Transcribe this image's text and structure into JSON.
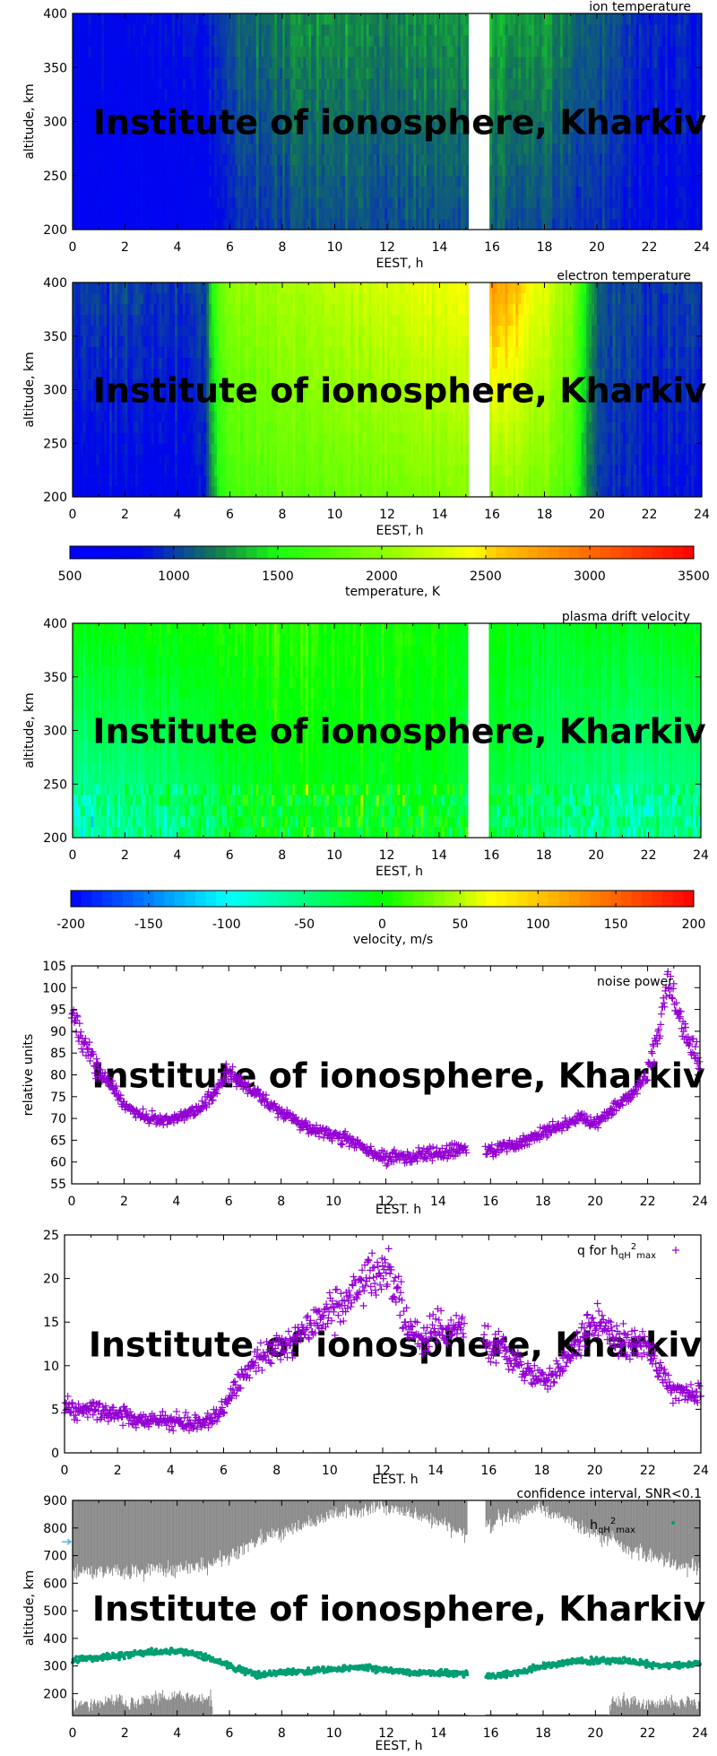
{
  "watermark": "Institute of ionosphere, Kharkiv",
  "chart_data": [
    {
      "type": "heatmap",
      "title": "ion temperature",
      "xlabel": "EEST, h",
      "ylabel": "altitude, km",
      "xlim": [
        0,
        24
      ],
      "ylim": [
        200,
        400
      ],
      "xticks": [
        0,
        2,
        4,
        6,
        8,
        10,
        12,
        14,
        16,
        18,
        20,
        22,
        24
      ],
      "yticks": [
        200,
        250,
        300,
        350,
        400
      ],
      "no_data_interval": [
        15.1,
        15.8
      ],
      "colorscale": "temperature",
      "profile": {
        "hours": [
          0,
          2,
          4,
          5,
          6,
          8,
          10,
          12,
          14,
          15,
          16,
          18,
          20,
          22,
          24
        ],
        "value_at_200km": [
          700,
          700,
          720,
          760,
          950,
          1050,
          1060,
          1050,
          1080,
          1060,
          1100,
          1050,
          950,
          850,
          820
        ],
        "value_at_400km": [
          850,
          850,
          870,
          900,
          1100,
          1250,
          1250,
          1230,
          1280,
          1250,
          1320,
          1280,
          1100,
          950,
          900
        ]
      }
    },
    {
      "type": "heatmap",
      "title": "electron temperature",
      "xlabel": "EEST, h",
      "ylabel": "altitude, km",
      "xlim": [
        0,
        24
      ],
      "ylim": [
        200,
        400
      ],
      "xticks": [
        0,
        2,
        4,
        6,
        8,
        10,
        12,
        14,
        16,
        18,
        20,
        22,
        24
      ],
      "yticks": [
        200,
        250,
        300,
        350,
        400
      ],
      "no_data_interval": [
        15.1,
        15.8
      ],
      "colorscale": "temperature",
      "profile": {
        "hours": [
          0,
          2,
          4,
          5,
          5.5,
          6,
          8,
          10,
          12,
          14,
          15,
          16,
          17,
          18,
          19,
          19.5,
          20,
          22,
          24
        ],
        "value_at_200km": [
          800,
          800,
          820,
          900,
          1500,
          1700,
          1800,
          1850,
          1900,
          1950,
          1950,
          2000,
          2000,
          1900,
          1700,
          1300,
          1000,
          880,
          850
        ],
        "value_at_400km": [
          1000,
          1000,
          1000,
          1050,
          1800,
          2000,
          2100,
          2200,
          2300,
          2400,
          2400,
          2800,
          2600,
          2300,
          2000,
          1500,
          1100,
          1000,
          1000
        ]
      }
    },
    {
      "type": "colorbar",
      "label": "temperature, K",
      "range": [
        500,
        3500
      ],
      "ticks": [
        500,
        1000,
        1500,
        2000,
        2500,
        3000,
        3500
      ],
      "stops": [
        [
          500,
          "#0000ff"
        ],
        [
          850,
          "#0008e8"
        ],
        [
          1000,
          "#0a3ca8"
        ],
        [
          1200,
          "#137a50"
        ],
        [
          1500,
          "#18ff10"
        ],
        [
          2000,
          "#8cff00"
        ],
        [
          2450,
          "#ffff00"
        ],
        [
          2550,
          "#ffc800"
        ],
        [
          3000,
          "#ff6a00"
        ],
        [
          3500,
          "#ff0000"
        ]
      ]
    },
    {
      "type": "heatmap",
      "title": "plasma drift velocity",
      "xlabel": "EEST, h",
      "ylabel": "altitude, km",
      "xlim": [
        0,
        24
      ],
      "ylim": [
        200,
        400
      ],
      "xticks": [
        0,
        2,
        4,
        6,
        8,
        10,
        12,
        14,
        16,
        18,
        20,
        22,
        24
      ],
      "yticks": [
        200,
        250,
        300,
        350,
        400
      ],
      "no_data_interval": [
        15.1,
        15.8
      ],
      "colorscale": "velocity",
      "profile": {
        "hours": [
          0,
          3,
          5,
          6,
          8,
          10,
          12,
          14,
          16,
          18,
          20,
          22,
          24
        ],
        "value_at_200km": [
          -70,
          -60,
          -40,
          -20,
          -10,
          -10,
          -10,
          -10,
          -30,
          -40,
          -60,
          -70,
          -60
        ],
        "value_at_400km": [
          0,
          5,
          5,
          10,
          15,
          10,
          5,
          5,
          -5,
          -10,
          -10,
          -10,
          -5
        ]
      }
    },
    {
      "type": "colorbar",
      "label": "velocity, m/s",
      "range": [
        -200,
        200
      ],
      "ticks": [
        -200,
        -150,
        -100,
        -50,
        0,
        50,
        100,
        150,
        200
      ],
      "stops": [
        [
          -200,
          "#0000ff"
        ],
        [
          -100,
          "#00ffff"
        ],
        [
          0,
          "#00ff00"
        ],
        [
          70,
          "#ffff00"
        ],
        [
          100,
          "#ffc800"
        ],
        [
          200,
          "#ff0000"
        ]
      ]
    },
    {
      "type": "scatter",
      "legend": "noise power",
      "xlabel": "EEST. h",
      "ylabel": "relative units",
      "xlim": [
        0,
        24
      ],
      "ylim": [
        55,
        105
      ],
      "xticks": [
        0,
        2,
        4,
        6,
        8,
        10,
        12,
        14,
        16,
        18,
        20,
        22,
        24
      ],
      "yticks": [
        55,
        60,
        65,
        70,
        75,
        80,
        85,
        90,
        95,
        100,
        105
      ],
      "no_data_interval": [
        15.1,
        15.8
      ],
      "marker": "plus",
      "color": "#9400d3",
      "trend": {
        "x": [
          0,
          0.5,
          1,
          1.5,
          2,
          2.5,
          3,
          3.5,
          4,
          4.5,
          5,
          5.5,
          6,
          6.5,
          7,
          7.5,
          8,
          8.5,
          9,
          9.5,
          10,
          10.5,
          11,
          11.5,
          12,
          12.5,
          13,
          13.5,
          14,
          14.5,
          15,
          16,
          16.5,
          17,
          17.5,
          18,
          18.5,
          19,
          19.5,
          20,
          20.5,
          21,
          21.5,
          22,
          22.5,
          22.8,
          23,
          23.5,
          24
        ],
        "y": [
          94,
          87,
          81,
          78,
          73,
          71,
          70,
          69.5,
          70,
          71,
          73,
          76,
          81,
          78,
          76,
          74,
          71,
          70,
          68,
          67,
          66,
          65,
          64,
          62,
          61,
          61,
          61,
          62,
          62,
          62.5,
          63,
          63,
          63.5,
          64,
          65.5,
          66.5,
          68,
          69,
          70,
          69,
          71,
          74,
          76,
          80,
          92,
          101,
          98,
          88,
          83
        ]
      }
    },
    {
      "type": "scatter",
      "legend": "q for h_qH²_max",
      "legend_parts": {
        "main": "q for h",
        "sub1": "qH",
        "sup": "2",
        "sub2": "max"
      },
      "xlabel": "EEST. h",
      "ylabel": "",
      "xlim": [
        0,
        24
      ],
      "ylim": [
        0,
        25
      ],
      "xticks": [
        0,
        2,
        4,
        6,
        8,
        10,
        12,
        14,
        16,
        18,
        20,
        22,
        24
      ],
      "yticks": [
        0,
        5,
        10,
        15,
        20,
        25
      ],
      "no_data_interval": [
        15.1,
        15.8
      ],
      "marker": "plus",
      "color": "#9400d3",
      "trend": {
        "x": [
          0,
          1,
          2,
          3,
          4,
          5,
          5.5,
          6,
          6.5,
          7,
          7.5,
          8,
          8.5,
          9,
          9.5,
          10,
          10.5,
          11,
          11.5,
          12,
          12.5,
          13,
          13.5,
          14,
          14.5,
          15,
          16,
          16.5,
          17,
          17.5,
          18,
          18.5,
          19,
          19.5,
          20,
          20.5,
          21,
          21.5,
          22,
          22.5,
          23,
          24
        ],
        "y": [
          5.2,
          5,
          4.5,
          3.8,
          3.5,
          3.5,
          3.5,
          5,
          7.5,
          10,
          11.5,
          12,
          12.5,
          13.5,
          15,
          16,
          17,
          19,
          20.5,
          21,
          19,
          14,
          13,
          14.5,
          14,
          15,
          12.5,
          12,
          10.5,
          9,
          8.5,
          9,
          11,
          13.5,
          15,
          14,
          13,
          12.5,
          12,
          9,
          7,
          6.5
        ]
      }
    },
    {
      "type": "scatter",
      "title": "confidence interval, SNR<0.1",
      "legend": "h_qH²_max",
      "legend_parts": {
        "main": "h",
        "sub1": "qH",
        "sup": "2",
        "sub2": "max"
      },
      "xlabel": "EEST, h",
      "ylabel": "altitude, km",
      "xlim": [
        0,
        24
      ],
      "ylim": [
        120,
        900
      ],
      "xticks": [
        0,
        2,
        4,
        6,
        8,
        10,
        12,
        14,
        16,
        18,
        20,
        22,
        24
      ],
      "yticks": [
        200,
        300,
        400,
        500,
        600,
        700,
        800,
        900
      ],
      "no_data_interval": [
        15.1,
        15.8
      ],
      "marker": "dot",
      "color": "#009e73",
      "band_color": "#8c8c8c",
      "marker_arrow_altitude": 750,
      "arrow_color": "#56b4e9",
      "trend": {
        "x": [
          0,
          1,
          2,
          3,
          4,
          5,
          6,
          7,
          8,
          9,
          10,
          11,
          12,
          13,
          14,
          15,
          16,
          17,
          18,
          19,
          20,
          21,
          22,
          23,
          24
        ],
        "y": [
          320,
          330,
          340,
          350,
          355,
          335,
          300,
          270,
          275,
          280,
          290,
          295,
          285,
          275,
          275,
          270,
          265,
          275,
          300,
          315,
          320,
          320,
          305,
          300,
          310
        ]
      },
      "confidence_upper_lower_edge": {
        "x": [
          0,
          2,
          4,
          5,
          6,
          8,
          10,
          12,
          14,
          15,
          16,
          18,
          20,
          22,
          24
        ],
        "y": [
          650,
          640,
          650,
          660,
          700,
          790,
          850,
          880,
          820,
          780,
          820,
          870,
          780,
          700,
          650
        ]
      },
      "confidence_lower_top_edge": {
        "x": [
          0,
          2,
          4,
          5.3,
          5.4,
          20.5,
          20.6,
          24
        ],
        "y": [
          160,
          170,
          190,
          180,
          125,
          125,
          170,
          165
        ]
      }
    }
  ]
}
